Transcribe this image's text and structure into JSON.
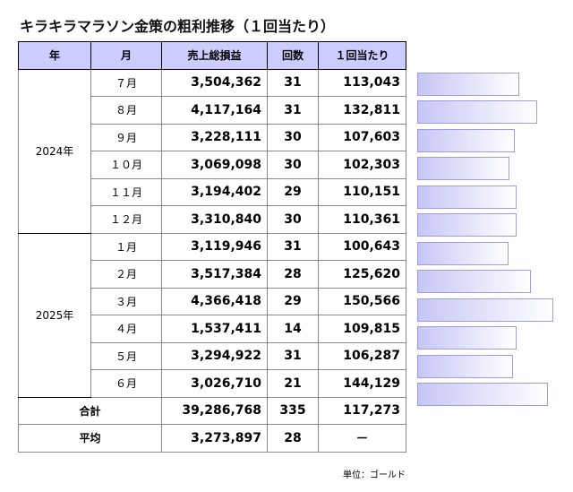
{
  "title": "キラキラマラソン金策の粗利推移（１回当たり）",
  "table": {
    "headers": [
      "年",
      "月",
      "売上総損益",
      "回数",
      "１回当たり"
    ],
    "groups": [
      {
        "year": "2024年",
        "rows": [
          {
            "month": "７月",
            "sales": "3,504,362",
            "count": 31,
            "per_run": {
              "value": 113043,
              "label": "113,043"
            }
          },
          {
            "month": "８月",
            "sales": "4,117,164",
            "count": 31,
            "per_run": {
              "value": 132811,
              "label": "132,811"
            }
          },
          {
            "month": "９月",
            "sales": "3,228,111",
            "count": 30,
            "per_run": {
              "value": 107603,
              "label": "107,603"
            }
          },
          {
            "month": "１０月",
            "sales": "3,069,098",
            "count": 30,
            "per_run": {
              "value": 102303,
              "label": "102,303"
            }
          },
          {
            "month": "１１月",
            "sales": "3,194,402",
            "count": 29,
            "per_run": {
              "value": 110151,
              "label": "110,151"
            }
          },
          {
            "month": "１２月",
            "sales": "3,310,840",
            "count": 30,
            "per_run": {
              "value": 110361,
              "label": "110,361"
            }
          }
        ]
      },
      {
        "year": "2025年",
        "rows": [
          {
            "month": "１月",
            "sales": "3,119,946",
            "count": 31,
            "per_run": {
              "value": 100643,
              "label": "100,643"
            }
          },
          {
            "month": "２月",
            "sales": "3,517,384",
            "count": 28,
            "per_run": {
              "value": 125620,
              "label": "125,620"
            }
          },
          {
            "month": "３月",
            "sales": "4,366,418",
            "count": 29,
            "per_run": {
              "value": 150566,
              "label": "150,566"
            }
          },
          {
            "month": "４月",
            "sales": "1,537,411",
            "count": 14,
            "per_run": {
              "value": 109815,
              "label": "109,815"
            }
          },
          {
            "month": "５月",
            "sales": "3,294,922",
            "count": 31,
            "per_run": {
              "value": 106287,
              "label": "106,287"
            }
          },
          {
            "month": "６月",
            "sales": "3,026,710",
            "count": 21,
            "per_run": {
              "value": 144129,
              "label": "144,129"
            }
          }
        ]
      }
    ],
    "total": {
      "label": "合計",
      "sales": "39,286,768",
      "count": 335,
      "per_run": "117,273"
    },
    "average": {
      "label": "平均",
      "sales": "3,273,897",
      "count": 28,
      "per_run": "－"
    }
  },
  "unit": "単位：ゴールド"
}
